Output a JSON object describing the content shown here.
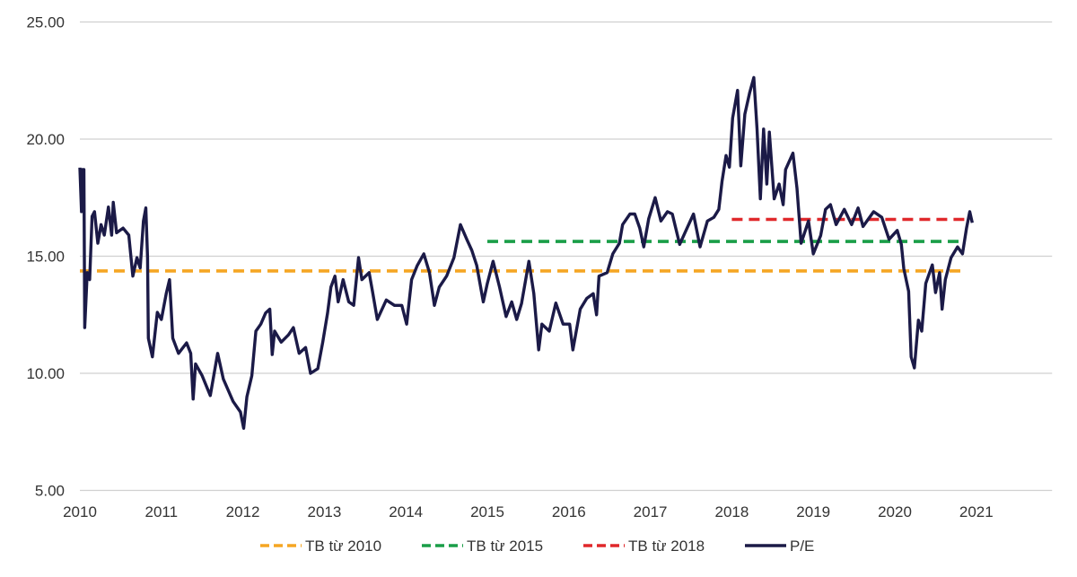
{
  "chart_data": {
    "type": "line",
    "title": "",
    "xlabel": "",
    "ylabel": "",
    "xlim": [
      2010,
      2021.93
    ],
    "ylim": [
      5,
      25
    ],
    "grid": "horizontal",
    "legend_position": "bottom",
    "y_ticks": [
      "5.00",
      "10.00",
      "15.00",
      "20.00",
      "25.00"
    ],
    "y_tick_values": [
      5,
      10,
      15,
      20,
      25
    ],
    "x_ticks": [
      "2010",
      "2011",
      "2012",
      "2013",
      "2014",
      "2015",
      "2016",
      "2017",
      "2018",
      "2019",
      "2020",
      "2021"
    ],
    "x_tick_values": [
      2010,
      2011,
      2012,
      2013,
      2014,
      2015,
      2016,
      2017,
      2018,
      2019,
      2020,
      2021
    ],
    "series": [
      {
        "name": "TB từ 2010",
        "style": "dashed",
        "color": "#f5a623",
        "x": [
          2010.0,
          2020.87
        ],
        "y": [
          14.37,
          14.37
        ]
      },
      {
        "name": "TB từ 2015",
        "style": "dashed",
        "color": "#1a9e48",
        "x": [
          2015.0,
          2020.87
        ],
        "y": [
          15.63,
          15.63
        ]
      },
      {
        "name": "TB từ 2018",
        "style": "dashed",
        "color": "#e0282b",
        "x": [
          2018.0,
          2020.87
        ],
        "y": [
          16.57,
          16.57
        ]
      },
      {
        "name": "P/E",
        "style": "solid",
        "color": "#1b1a47",
        "x": [
          2010.0,
          2010.02,
          2010.03,
          2010.05,
          2010.06,
          2010.09,
          2010.12,
          2010.15,
          2010.18,
          2010.22,
          2010.26,
          2010.3,
          2010.35,
          2010.39,
          2010.41,
          2010.45,
          2010.53,
          2010.6,
          2010.65,
          2010.7,
          2010.74,
          2010.78,
          2010.81,
          2010.83,
          2010.84,
          2010.89,
          2010.95,
          2011.0,
          2011.06,
          2011.1,
          2011.14,
          2011.21,
          2011.31,
          2011.36,
          2011.39,
          2011.42,
          2011.5,
          2011.6,
          2011.69,
          2011.76,
          2011.88,
          2011.97,
          2012.01,
          2012.05,
          2012.11,
          2012.16,
          2012.22,
          2012.28,
          2012.33,
          2012.36,
          2012.39,
          2012.47,
          2012.56,
          2012.62,
          2012.69,
          2012.77,
          2012.83,
          2012.92,
          2012.98,
          2013.04,
          2013.08,
          2013.13,
          2013.17,
          2013.23,
          2013.3,
          2013.36,
          2013.42,
          2013.46,
          2013.55,
          2013.59,
          2013.65,
          2013.76,
          2013.86,
          2013.95,
          2014.01,
          2014.07,
          2014.14,
          2014.22,
          2014.29,
          2014.35,
          2014.41,
          2014.5,
          2014.59,
          2014.67,
          2014.75,
          2014.81,
          2014.87,
          2014.95,
          2015.0,
          2015.07,
          2015.15,
          2015.23,
          2015.3,
          2015.36,
          2015.42,
          2015.51,
          2015.57,
          2015.63,
          2015.67,
          2015.76,
          2015.84,
          2015.93,
          2016.01,
          2016.05,
          2016.14,
          2016.22,
          2016.3,
          2016.34,
          2016.37,
          2016.47,
          2016.54,
          2016.62,
          2016.66,
          2016.75,
          2016.81,
          2016.87,
          2016.92,
          2016.98,
          2017.06,
          2017.13,
          2017.21,
          2017.27,
          2017.36,
          2017.42,
          2017.53,
          2017.61,
          2017.7,
          2017.78,
          2017.84,
          2017.88,
          2017.93,
          2017.97,
          2018.01,
          2018.07,
          2018.11,
          2018.16,
          2018.22,
          2018.27,
          2018.31,
          2018.35,
          2018.39,
          2018.43,
          2018.46,
          2018.52,
          2018.58,
          2018.63,
          2018.66,
          2018.75,
          2018.8,
          2018.85,
          2018.94,
          2019.0,
          2019.09,
          2019.15,
          2019.21,
          2019.28,
          2019.38,
          2019.47,
          2019.55,
          2019.61,
          2019.74,
          2019.84,
          2019.93,
          2020.03,
          2020.08,
          2020.11,
          2020.17,
          2020.2,
          2020.24,
          2020.29,
          2020.33,
          2020.38,
          2020.46,
          2020.5,
          2020.55,
          2020.58,
          2020.62,
          2020.69,
          2020.77,
          2020.83,
          2020.88,
          2020.92,
          2020.95
        ],
        "y": [
          18.78,
          16.9,
          18.7,
          18.7,
          11.95,
          14.3,
          14.0,
          16.7,
          16.9,
          15.55,
          16.35,
          15.9,
          17.1,
          15.9,
          17.3,
          16.0,
          16.2,
          15.9,
          14.15,
          14.94,
          14.5,
          16.5,
          17.06,
          14.94,
          11.5,
          10.7,
          12.6,
          12.3,
          13.4,
          14.0,
          11.5,
          10.85,
          11.3,
          10.85,
          8.9,
          10.4,
          9.9,
          9.05,
          10.85,
          9.76,
          8.8,
          8.35,
          7.65,
          9.0,
          9.9,
          11.8,
          12.1,
          12.58,
          12.74,
          10.8,
          11.8,
          11.33,
          11.64,
          11.95,
          10.85,
          11.1,
          10.0,
          10.2,
          11.33,
          12.58,
          13.68,
          14.15,
          13.05,
          14.0,
          13.05,
          12.9,
          14.94,
          14.0,
          14.3,
          13.5,
          12.3,
          13.13,
          12.9,
          12.9,
          12.1,
          14.0,
          14.6,
          15.1,
          14.3,
          12.9,
          13.68,
          14.15,
          14.94,
          16.35,
          15.7,
          15.25,
          14.6,
          13.05,
          13.84,
          14.78,
          13.68,
          12.42,
          13.05,
          12.3,
          12.98,
          14.78,
          13.4,
          11.0,
          12.1,
          11.8,
          13.0,
          12.1,
          12.1,
          11.0,
          12.74,
          13.2,
          13.4,
          12.5,
          14.15,
          14.3,
          15.1,
          15.55,
          16.35,
          16.8,
          16.8,
          16.2,
          15.4,
          16.6,
          17.5,
          16.5,
          16.9,
          16.8,
          15.5,
          15.96,
          16.8,
          15.4,
          16.5,
          16.66,
          17.0,
          18.2,
          19.3,
          18.8,
          20.9,
          22.08,
          18.86,
          21.06,
          22.0,
          22.63,
          20.43,
          17.45,
          20.43,
          18.08,
          20.3,
          17.45,
          18.08,
          17.2,
          18.7,
          19.4,
          17.9,
          15.55,
          16.5,
          15.1,
          15.88,
          17.0,
          17.2,
          16.35,
          17.0,
          16.35,
          17.06,
          16.27,
          16.9,
          16.66,
          15.72,
          16.1,
          15.5,
          14.47,
          13.5,
          10.7,
          10.23,
          12.27,
          11.8,
          13.84,
          14.63,
          13.45,
          14.3,
          12.74,
          14.0,
          14.94,
          15.4,
          15.1,
          16.2,
          16.9,
          16.43
        ]
      }
    ]
  }
}
